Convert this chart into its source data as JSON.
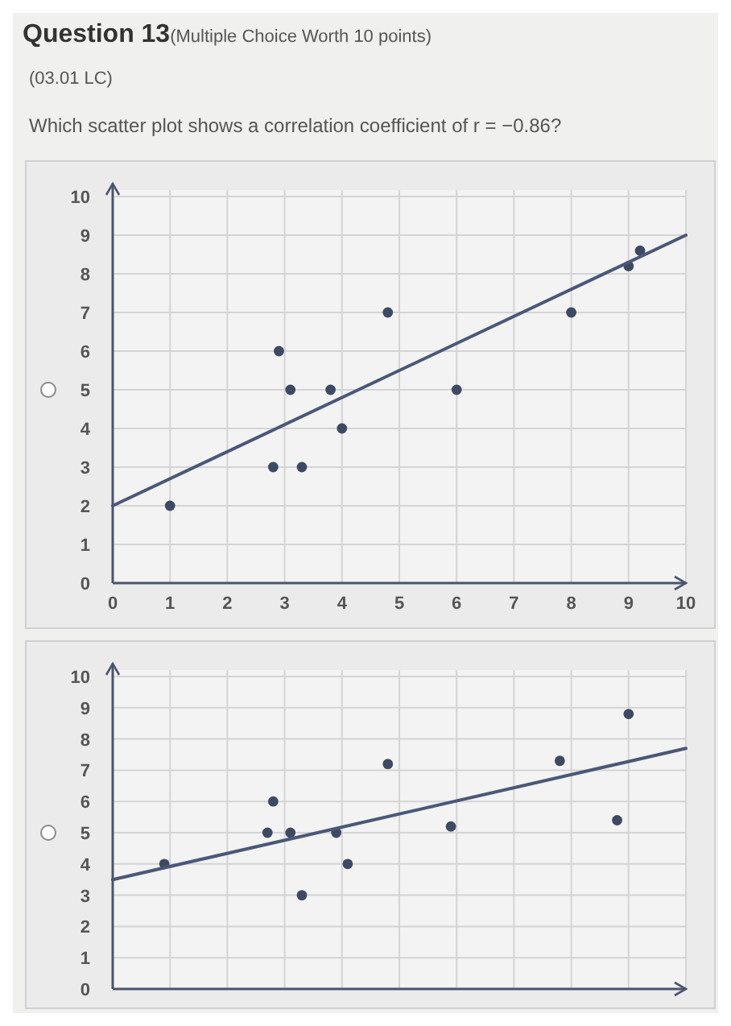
{
  "chart_data": [
    {
      "type": "scatter",
      "title": "Question 13",
      "subtitle": "(Multiple Choice Worth 10 points)",
      "annotations": [
        "(03.01 LC)",
        "Which scatter plot shows a correlation coefficient of r = −0.86?"
      ],
      "xlim": [
        0,
        10
      ],
      "ylim": [
        0,
        10
      ],
      "xticks": [
        0,
        1,
        2,
        3,
        4,
        5,
        6,
        7,
        8,
        9,
        10
      ],
      "yticks": [
        0,
        1,
        2,
        3,
        4,
        5,
        6,
        7,
        8,
        9,
        10
      ],
      "grid": true,
      "series": [
        {
          "marker": "circle",
          "color": "#3e4a63",
          "x": [
            1,
            2.8,
            2.9,
            3.1,
            3.3,
            3.8,
            4,
            4.8,
            6,
            8,
            9,
            9.2
          ],
          "values": [
            2,
            3,
            6,
            5,
            3,
            5,
            4,
            7,
            5,
            7,
            8.2,
            8.6
          ]
        },
        {
          "type": "line",
          "color": "#4a5878",
          "x": [
            0,
            10
          ],
          "values": [
            2,
            9
          ]
        }
      ]
    },
    {
      "type": "scatter",
      "xlim": [
        0,
        10
      ],
      "ylim": [
        0,
        10
      ],
      "xticks": [
        0,
        1,
        2,
        3,
        4,
        5,
        6,
        7,
        8,
        9,
        10
      ],
      "yticks": [
        0,
        1,
        2,
        3,
        4,
        5,
        6,
        7,
        8,
        9,
        10
      ],
      "grid": true,
      "tick_labels": "y",
      "series": [
        {
          "marker": "circle",
          "color": "#3e4a63",
          "x": [
            0.9,
            2.7,
            2.8,
            3.1,
            3.3,
            3.9,
            4.1,
            4.8,
            5.9,
            7.8,
            8.8,
            9
          ],
          "values": [
            4,
            5,
            6,
            5,
            3,
            5,
            4,
            7.2,
            5.2,
            7.3,
            5.4,
            8.8
          ]
        },
        {
          "type": "line",
          "color": "#4a5878",
          "x": [
            0,
            10
          ],
          "values": [
            3.5,
            7.7
          ]
        }
      ]
    }
  ]
}
